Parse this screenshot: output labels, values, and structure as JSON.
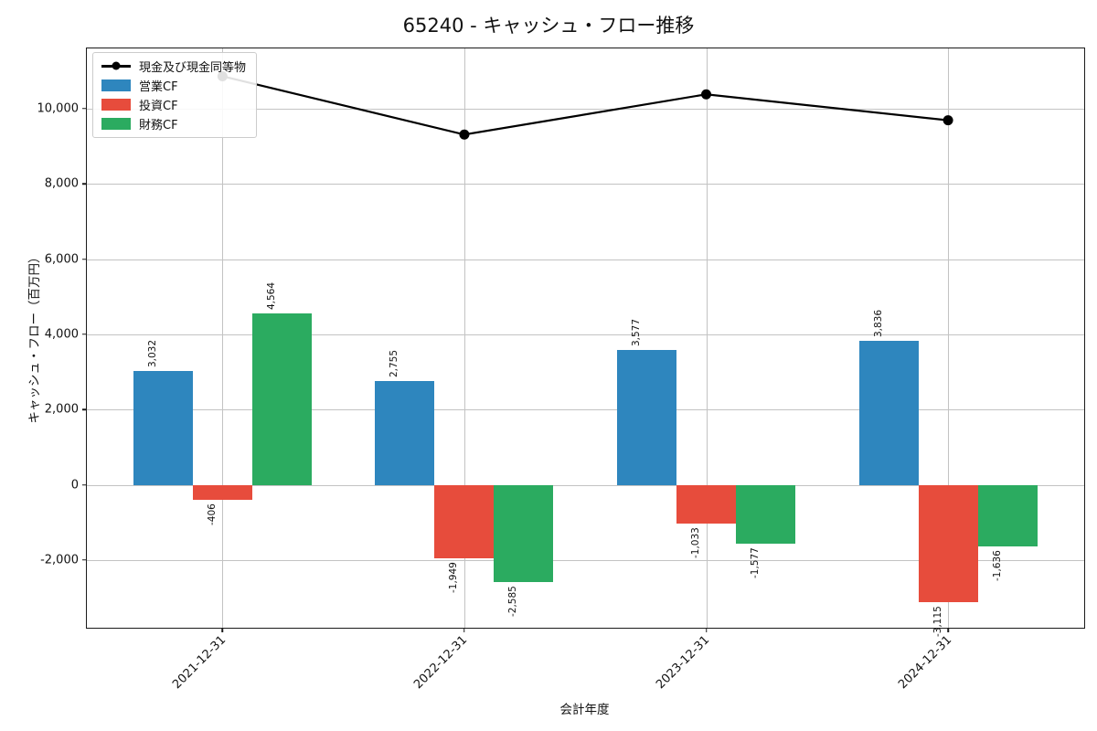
{
  "title": "65240 - キャッシュ・フロー推移",
  "axes": {
    "x_label": "会計年度",
    "y_label": "キャッシュ・フロー（百万円）"
  },
  "legend": {
    "items": [
      {
        "label": "現金及び現金同等物",
        "type": "line",
        "color": "#000000"
      },
      {
        "label": "営業CF",
        "type": "bar",
        "color": "#2e86be"
      },
      {
        "label": "投資CF",
        "type": "bar",
        "color": "#e74c3c"
      },
      {
        "label": "財務CF",
        "type": "bar",
        "color": "#2bab60"
      }
    ]
  },
  "chart_data": {
    "type": "bar",
    "title": "65240 - キャッシュ・フロー推移",
    "xlabel": "会計年度",
    "ylabel": "キャッシュ・フロー（百万円）",
    "categories": [
      "2021-12-31",
      "2022-12-31",
      "2023-12-31",
      "2024-12-31"
    ],
    "bar_series": [
      {
        "name": "営業CF",
        "color": "#2e86be",
        "values": [
          3032,
          2755,
          3577,
          3836
        ],
        "labels": [
          "3,032",
          "2,755",
          "3,577",
          "3,836"
        ]
      },
      {
        "name": "投資CF",
        "color": "#e74c3c",
        "values": [
          -406,
          -1949,
          -1033,
          -3115
        ],
        "labels": [
          "-406",
          "-1,949",
          "-1,033",
          "-3,115"
        ]
      },
      {
        "name": "財務CF",
        "color": "#2bab60",
        "values": [
          4564,
          -2585,
          -1577,
          -1636
        ],
        "labels": [
          "4,564",
          "-2,585",
          "-1,577",
          "-1,636"
        ]
      }
    ],
    "line_series": {
      "name": "現金及び現金同等物",
      "color": "#000000",
      "values_estimated_from_pixels": true,
      "values": [
        10860,
        9310,
        10380,
        9690
      ]
    },
    "y_ticks": {
      "values": [
        -2000,
        0,
        2000,
        4000,
        6000,
        8000,
        10000
      ],
      "labels": [
        "-2,000",
        "0",
        "2,000",
        "4,000",
        "6,000",
        "8,000",
        "10,000"
      ]
    },
    "ylim": [
      -3800,
      11600
    ],
    "grid": true,
    "legend_position": "upper left"
  }
}
